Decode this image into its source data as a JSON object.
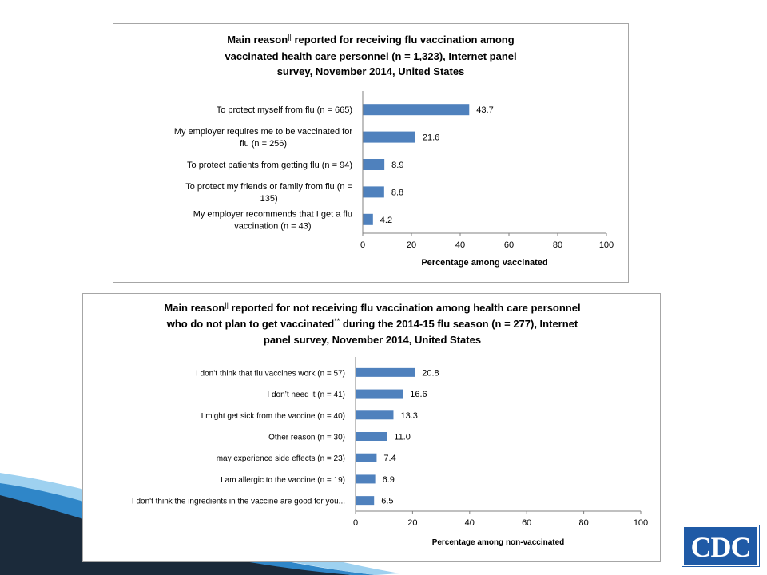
{
  "colors": {
    "bar": "#4f81bd",
    "axis": "#808080",
    "text": "#000000",
    "frame": "#a6a6a6",
    "cdc_blue": "#1f5aa6"
  },
  "logo": {
    "text": "CDC"
  },
  "chart_data": [
    {
      "type": "bar",
      "orientation": "horizontal",
      "title": [
        "Main reason",
        "||",
        " reported for receiving flu vaccination among",
        "vaccinated health care personnel (n = 1,323), Internet panel",
        "survey, November 2014, United States"
      ],
      "categories": [
        [
          "To protect myself from flu (n = 665)"
        ],
        [
          "My employer requires me to be vaccinated for",
          "flu (n = 256)"
        ],
        [
          "To protect patients from getting flu (n = 94)"
        ],
        [
          "To protect my friends or family from flu (n =",
          "135)"
        ],
        [
          "My employer recommends that I get a flu",
          "vaccination (n = 43)"
        ]
      ],
      "values": [
        43.7,
        21.6,
        8.9,
        8.8,
        4.2
      ],
      "value_labels": [
        "43.7",
        "21.6",
        "8.9",
        "8.8",
        "4.2"
      ],
      "xlabel": "Percentage among vaccinated",
      "xlim": [
        0,
        100
      ],
      "xticks": [
        "0",
        "20",
        "40",
        "60",
        "80",
        "100"
      ],
      "grid": false
    },
    {
      "type": "bar",
      "orientation": "horizontal",
      "title": [
        "Main reason",
        "||",
        " reported for not receiving flu vaccination among health care personnel",
        "who do not plan to get vaccinated",
        "**",
        " during the 2014-15 flu season (n = 277), Internet",
        "panel survey, November 2014, United States"
      ],
      "categories": [
        [
          "I don’t think that flu vaccines work (n = 57)"
        ],
        [
          "I don’t need it (n = 41)"
        ],
        [
          "I might get sick from the vaccine (n = 40)"
        ],
        [
          "Other reason (n = 30)"
        ],
        [
          "I may experience side effects (n = 23)"
        ],
        [
          "I am allergic to the vaccine (n = 19)"
        ],
        [
          "I don't think the ingredients in the vaccine are good for you..."
        ]
      ],
      "values": [
        20.8,
        16.6,
        13.3,
        11.0,
        7.4,
        6.9,
        6.5
      ],
      "value_labels": [
        "20.8",
        "16.6",
        "13.3",
        "11.0",
        "7.4",
        "6.9",
        "6.5"
      ],
      "xlabel": "Percentage among non-vaccinated",
      "xlim": [
        0,
        100
      ],
      "xticks": [
        "0",
        "20",
        "40",
        "60",
        "80",
        "100"
      ],
      "grid": false
    }
  ]
}
